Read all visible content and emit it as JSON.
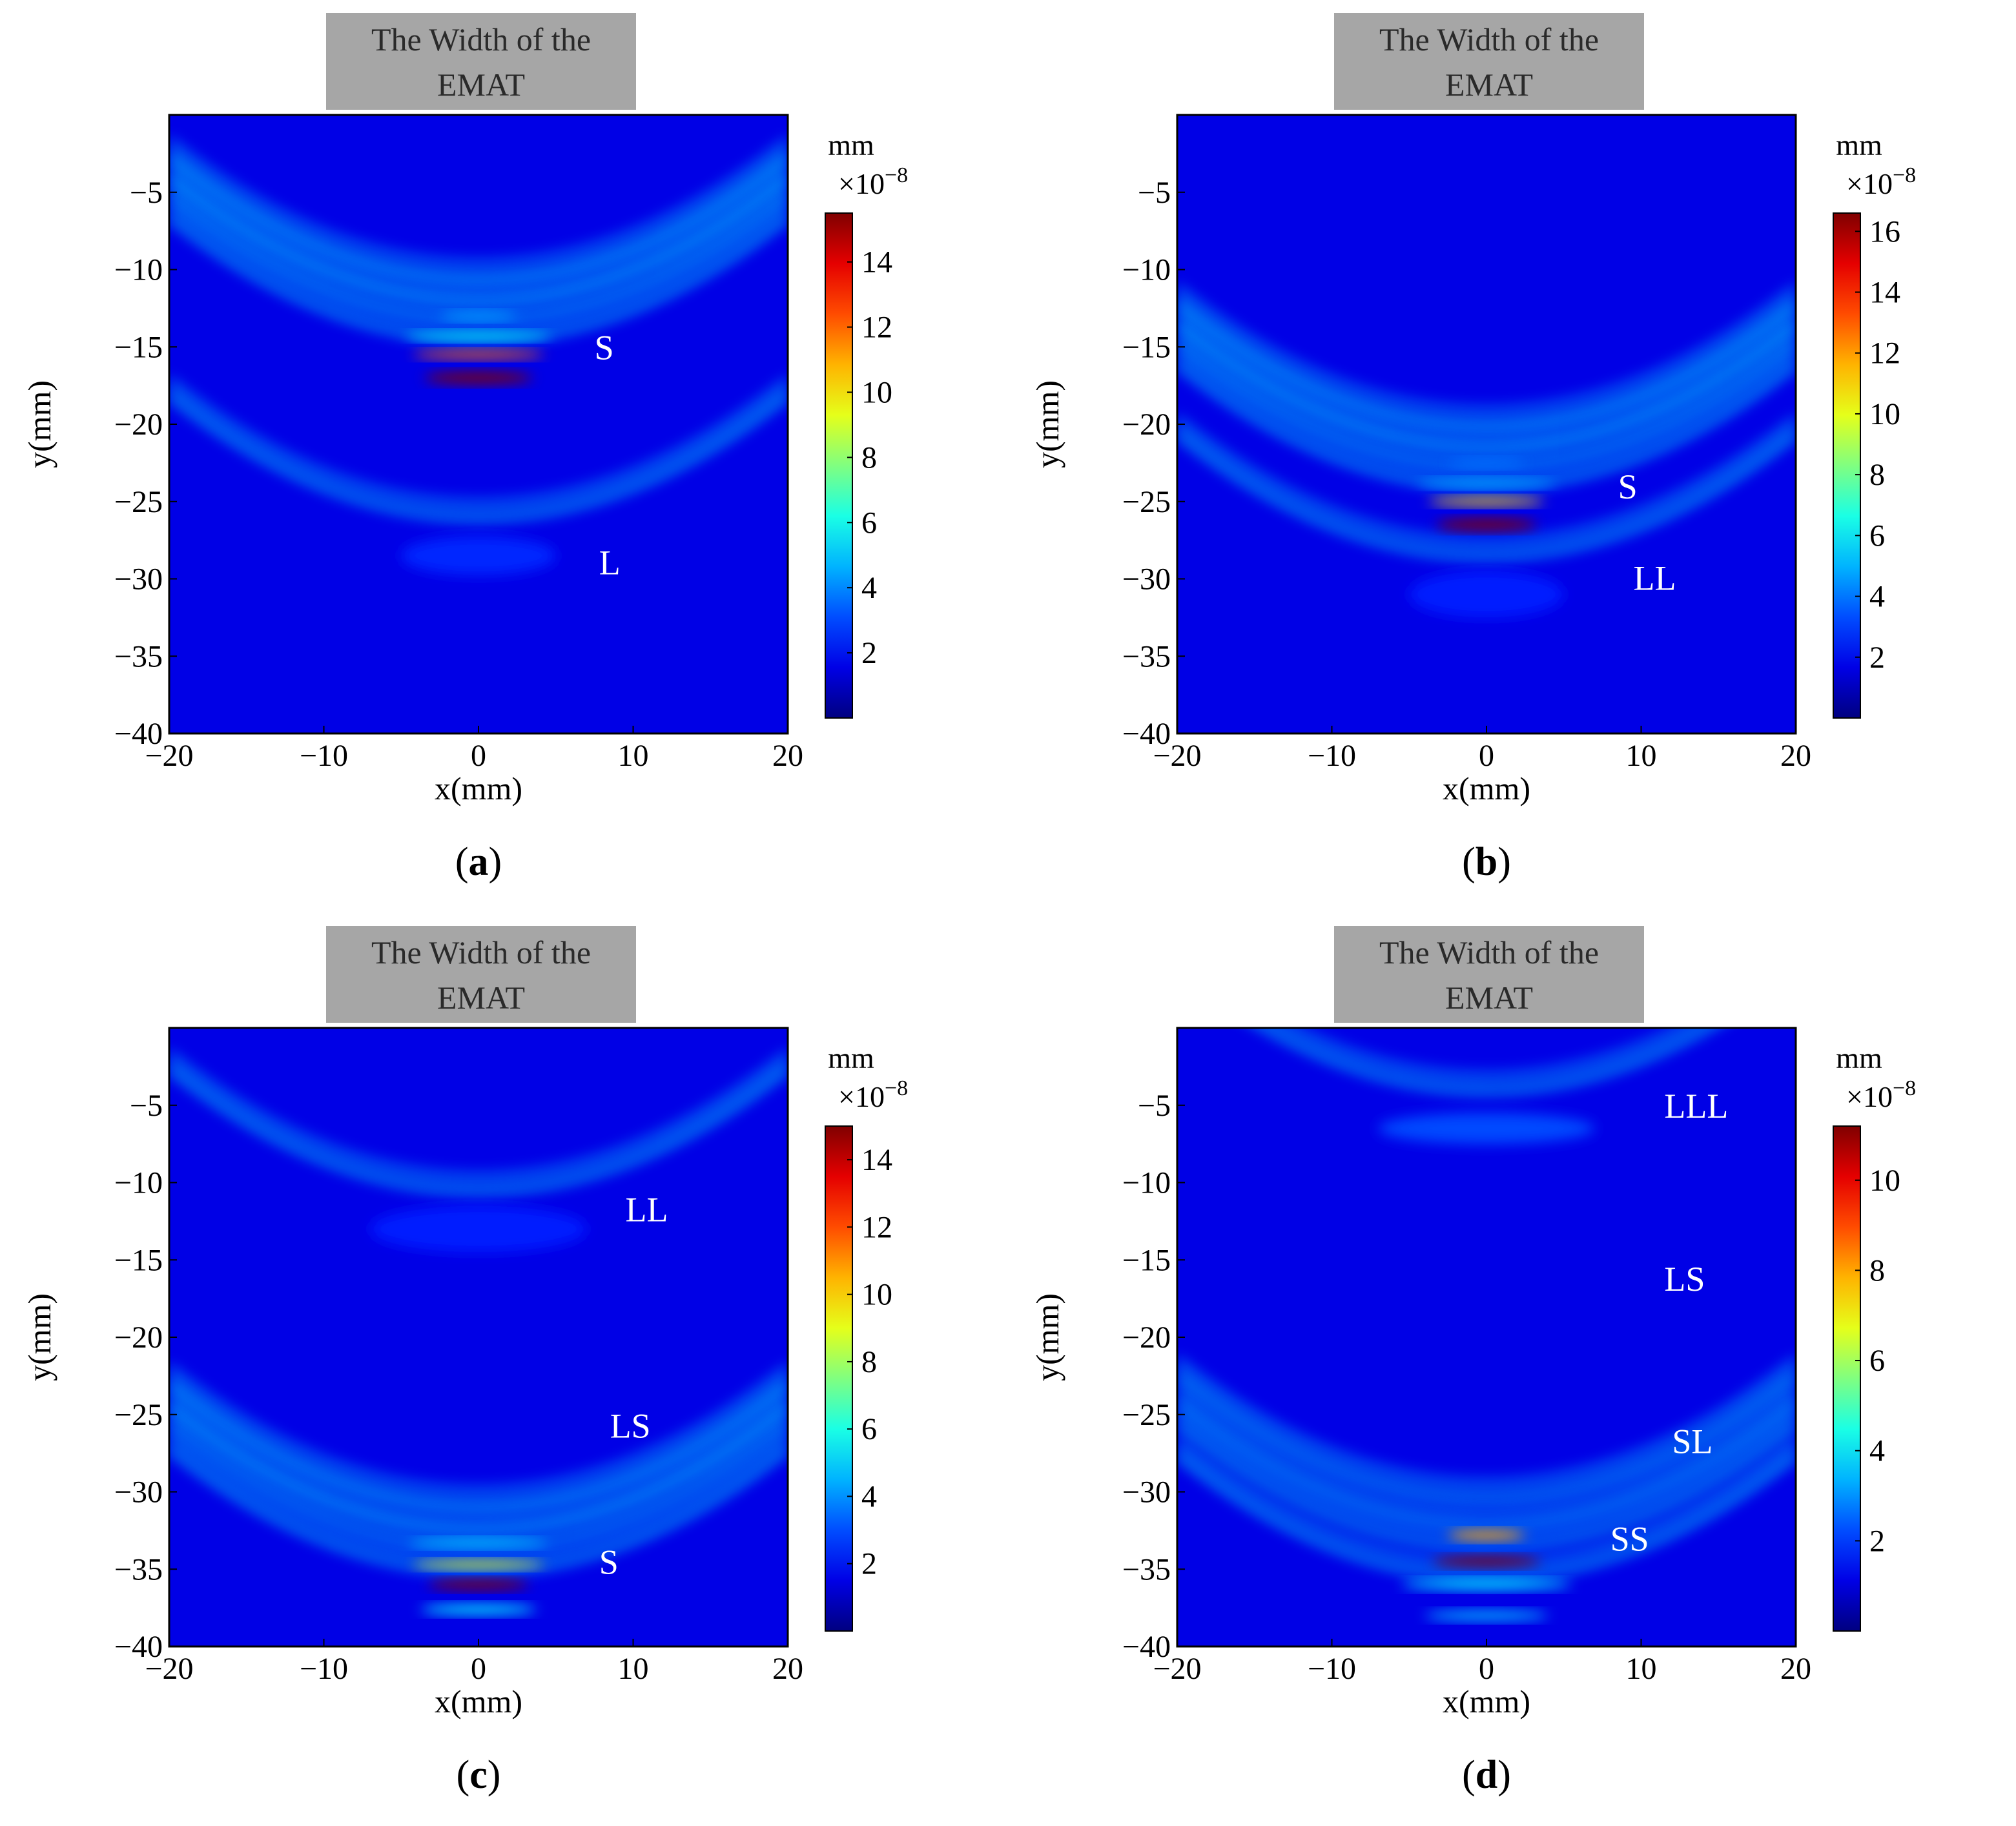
{
  "colors": {
    "jet_low": "#00008f",
    "jet_high": "#800000",
    "emat_box": "#a6a6a6",
    "axis": "#000000"
  },
  "chart_data": [
    {
      "type": "heatmap",
      "id": "a",
      "caption_letter": "a",
      "title_box_lines": [
        "The Width of the",
        "EMAT"
      ],
      "xlabel": "x(mm)",
      "ylabel": "y(mm)",
      "xlim": [
        -20,
        20
      ],
      "ylim": [
        -40,
        0
      ],
      "xticks": [
        -20,
        -10,
        0,
        10,
        20
      ],
      "yticks": [
        -5,
        -10,
        -15,
        -20,
        -25,
        -30,
        -35,
        -40
      ],
      "colorbar": {
        "unit": "mm",
        "scale": "×10",
        "exponent": "−8",
        "min": 0,
        "max": 15.5,
        "ticks": [
          2,
          4,
          6,
          8,
          10,
          12,
          14
        ]
      },
      "annotations": [
        {
          "text": "S",
          "x": 7.5,
          "y": -15.8
        },
        {
          "text": "L",
          "x": 7.8,
          "y": -29.7
        }
      ],
      "wavefronts": [
        {
          "center_y": -17.0,
          "width": 7.0,
          "height": 0.7,
          "peak": 15.5
        },
        {
          "center_y": -15.5,
          "width": 8.5,
          "height": 0.5,
          "peak": 12.0
        },
        {
          "center_y": -14.3,
          "width": 9.5,
          "height": 0.5,
          "peak": 6.0
        },
        {
          "center_y": -13.0,
          "width": 5.0,
          "height": 0.5,
          "peak": 4.5
        },
        {
          "center_y": -28.5,
          "width": 10.0,
          "height": 2.5,
          "peak": 2.5
        }
      ]
    },
    {
      "type": "heatmap",
      "id": "b",
      "caption_letter": "b",
      "title_box_lines": [
        "The Width of the",
        "EMAT"
      ],
      "xlabel": "x(mm)",
      "ylabel": "y(mm)",
      "xlim": [
        -20,
        20
      ],
      "ylim": [
        -40,
        0
      ],
      "xticks": [
        -20,
        -10,
        0,
        10,
        20
      ],
      "yticks": [
        -5,
        -10,
        -15,
        -20,
        -25,
        -30,
        -35,
        -40
      ],
      "colorbar": {
        "unit": "mm",
        "scale": "×10",
        "exponent": "−8",
        "min": 0,
        "max": 16.6,
        "ticks": [
          2,
          4,
          6,
          8,
          10,
          12,
          14,
          16
        ]
      },
      "annotations": [
        {
          "text": "S",
          "x": 8.5,
          "y": -24.8
        },
        {
          "text": "LL",
          "x": 9.5,
          "y": -30.7
        }
      ],
      "wavefronts": [
        {
          "center_y": -26.5,
          "width": 6.5,
          "height": 0.7,
          "peak": 16.6
        },
        {
          "center_y": -25.0,
          "width": 7.5,
          "height": 0.5,
          "peak": 11.0
        },
        {
          "center_y": -23.8,
          "width": 9.0,
          "height": 0.5,
          "peak": 5.0
        },
        {
          "center_y": -22.5,
          "width": 5.0,
          "height": 0.5,
          "peak": 4.0
        },
        {
          "center_y": -31.0,
          "width": 10.0,
          "height": 3.0,
          "peak": 2.5
        }
      ]
    },
    {
      "type": "heatmap",
      "id": "c",
      "caption_letter": "c",
      "title_box_lines": [
        "The Width of the",
        "EMAT"
      ],
      "xlabel": "x(mm)",
      "ylabel": "y(mm)",
      "xlim": [
        -20,
        20
      ],
      "ylim": [
        -40,
        0
      ],
      "xticks": [
        -20,
        -10,
        0,
        10,
        20
      ],
      "yticks": [
        -5,
        -10,
        -15,
        -20,
        -25,
        -30,
        -35,
        -40
      ],
      "colorbar": {
        "unit": "mm",
        "scale": "×10",
        "exponent": "−8",
        "min": 0,
        "max": 15,
        "ticks": [
          2,
          4,
          6,
          8,
          10,
          12,
          14
        ]
      },
      "annotations": [
        {
          "text": "LL",
          "x": 9.5,
          "y": -12.5
        },
        {
          "text": "LS",
          "x": 8.5,
          "y": -26.5
        },
        {
          "text": "S",
          "x": 7.8,
          "y": -35.3
        }
      ],
      "wavefronts": [
        {
          "center_y": -36.0,
          "width": 6.5,
          "height": 0.6,
          "peak": 15.0
        },
        {
          "center_y": -34.7,
          "width": 8.5,
          "height": 0.5,
          "peak": 9.0
        },
        {
          "center_y": -33.3,
          "width": 9.0,
          "height": 0.5,
          "peak": 5.0
        },
        {
          "center_y": -37.6,
          "width": 7.5,
          "height": 0.6,
          "peak": 5.5
        },
        {
          "center_y": -13.0,
          "width": 14.0,
          "height": 3.0,
          "peak": 2.3
        }
      ]
    },
    {
      "type": "heatmap",
      "id": "d",
      "caption_letter": "d",
      "title_box_lines": [
        "The Width of the",
        "EMAT"
      ],
      "xlabel": "x(mm)",
      "ylabel": "y(mm)",
      "xlim": [
        -20,
        20
      ],
      "ylim": [
        -40,
        0
      ],
      "xticks": [
        -20,
        -10,
        0,
        10,
        20
      ],
      "yticks": [
        -5,
        -10,
        -15,
        -20,
        -25,
        -30,
        -35,
        -40
      ],
      "colorbar": {
        "unit": "mm",
        "scale": "×10",
        "exponent": "−8",
        "min": 0,
        "max": 11.2,
        "ticks": [
          2,
          4,
          6,
          8,
          10
        ]
      },
      "annotations": [
        {
          "text": "LLL",
          "x": 11.5,
          "y": -5.8
        },
        {
          "text": "LS",
          "x": 11.5,
          "y": -17.0
        },
        {
          "text": "SL",
          "x": 12.0,
          "y": -27.5
        },
        {
          "text": "SS",
          "x": 8.0,
          "y": -33.8
        }
      ],
      "wavefronts": [
        {
          "center_y": -34.5,
          "width": 7.0,
          "height": 0.6,
          "peak": 11.2
        },
        {
          "center_y": -32.8,
          "width": 5.0,
          "height": 0.6,
          "peak": 8.0
        },
        {
          "center_y": -36.0,
          "width": 11.0,
          "height": 0.6,
          "peak": 4.0
        },
        {
          "center_y": -38.0,
          "width": 8.0,
          "height": 0.6,
          "peak": 3.5
        },
        {
          "center_y": -6.5,
          "width": 14.0,
          "height": 2.0,
          "peak": 2.2
        }
      ]
    }
  ]
}
